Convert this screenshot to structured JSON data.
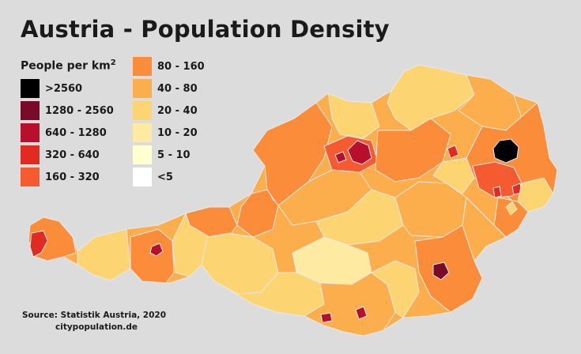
{
  "title": "Austria - Population Density",
  "legend": {
    "title": "People per km",
    "title_exponent": "2",
    "items": [
      {
        "label": ">2560",
        "color": "#000000"
      },
      {
        "label": "1280 - 2560",
        "color": "#7a0a2a"
      },
      {
        "label": "640 - 1280",
        "color": "#b8102c"
      },
      {
        "label": "320 - 640",
        "color": "#e02a22"
      },
      {
        "label": "160 - 320",
        "color": "#f65a30"
      },
      {
        "label": "80 - 160",
        "color": "#fb8c3a"
      },
      {
        "label": "40 - 80",
        "color": "#fcae4c"
      },
      {
        "label": "20 - 40",
        "color": "#fdd472"
      },
      {
        "label": "10 - 20",
        "color": "#feeaa0"
      },
      {
        "label": "5 - 10",
        "color": "#ffffd0"
      },
      {
        "label": "<5",
        "color": "#ffffff"
      }
    ]
  },
  "source": {
    "line1": "Source:  Statistik Austria, 2020",
    "line2": "citypopulation.de"
  }
}
